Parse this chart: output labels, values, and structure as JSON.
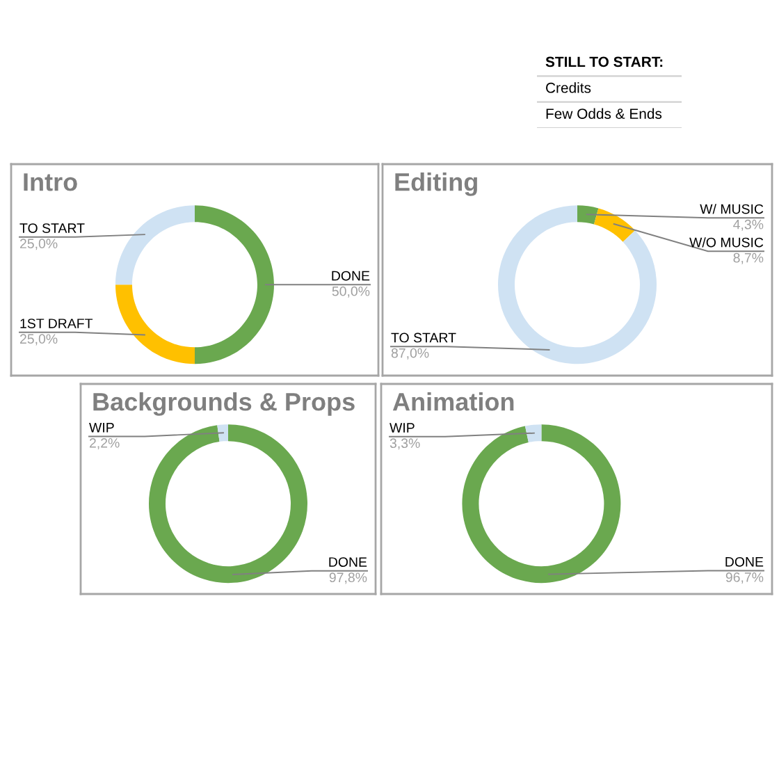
{
  "chart_data": [
    {
      "type": "other",
      "title": "STILL TO START:",
      "annotations": [
        "Credits",
        "Few Odds & Ends"
      ]
    },
    {
      "type": "donut",
      "title": "Intro",
      "categories": [
        "DONE",
        "1ST DRAFT",
        "TO START"
      ],
      "values": [
        50.0,
        25.0,
        25.0
      ],
      "colors": [
        "#6aa84f",
        "#ffc000",
        "#cfe2f3"
      ],
      "value_labels": [
        "50,0%",
        "25,0%",
        "25,0%"
      ]
    },
    {
      "type": "donut",
      "title": "Editing",
      "categories": [
        "W/ MUSIC",
        "W/O MUSIC",
        "TO START"
      ],
      "values": [
        4.3,
        8.7,
        87.0
      ],
      "colors": [
        "#6aa84f",
        "#ffc000",
        "#cfe2f3"
      ],
      "value_labels": [
        "4,3%",
        "8,7%",
        "87,0%"
      ]
    },
    {
      "type": "donut",
      "title": "Backgrounds & Props",
      "categories": [
        "DONE",
        "WIP"
      ],
      "values": [
        97.8,
        2.2
      ],
      "colors": [
        "#6aa84f",
        "#cfe2f3"
      ],
      "value_labels": [
        "97,8%",
        "2,2%"
      ]
    },
    {
      "type": "donut",
      "title": "Animation",
      "categories": [
        "DONE",
        "WIP"
      ],
      "values": [
        96.7,
        3.3
      ],
      "colors": [
        "#6aa84f",
        "#cfe2f3"
      ],
      "value_labels": [
        "96,7%",
        "3,3%"
      ]
    }
  ]
}
